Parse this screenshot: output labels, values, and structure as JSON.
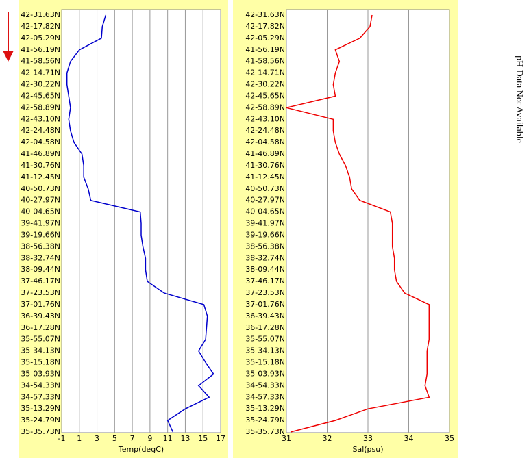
{
  "chart_data": [
    {
      "type": "line",
      "xlabel": "Temp(degC)",
      "categories": [
        "42-31.63N",
        "42-17.82N",
        "42-05.29N",
        "41-56.19N",
        "41-58.56N",
        "42-14.71N",
        "42-30.22N",
        "42-45.65N",
        "42-58.89N",
        "42-43.10N",
        "42-24.48N",
        "42-04.58N",
        "41-46.89N",
        "41-30.76N",
        "41-12.45N",
        "40-50.73N",
        "40-27.97N",
        "40-04.65N",
        "39-41.97N",
        "39-19.66N",
        "38-56.38N",
        "38-32.74N",
        "38-09.44N",
        "37-46.17N",
        "37-23.53N",
        "37-01.76N",
        "36-39.43N",
        "36-17.28N",
        "35-55.07N",
        "35-34.13N",
        "35-15.18N",
        "35-03.93N",
        "34-54.33N",
        "34-57.33N",
        "35-13.29N",
        "35-24.79N",
        "35-35.73N"
      ],
      "series": [
        {
          "name": "Temp",
          "color": "#0000cc",
          "values": [
            4.0,
            3.6,
            3.5,
            1.0,
            0.0,
            -0.4,
            -0.4,
            -0.2,
            0.0,
            -0.2,
            0.0,
            0.4,
            1.3,
            1.5,
            1.5,
            2.0,
            2.3,
            7.9,
            8.0,
            8.0,
            8.2,
            8.5,
            8.5,
            8.7,
            10.6,
            15.1,
            15.5,
            15.4,
            15.3,
            14.5,
            15.3,
            16.2,
            14.5,
            15.7,
            13.0,
            11.0,
            11.6
          ]
        }
      ],
      "xlim": [
        -1,
        17
      ],
      "xticks": [
        -1,
        1,
        3,
        5,
        7,
        9,
        11,
        13,
        15,
        17
      ],
      "grid": true
    },
    {
      "type": "line",
      "xlabel": "Sal(psu)",
      "categories": [
        "42-31.63N",
        "42-17.82N",
        "42-05.29N",
        "41-56.19N",
        "41-58.56N",
        "42-14.71N",
        "42-30.22N",
        "42-45.65N",
        "42-58.89N",
        "42-43.10N",
        "42-24.48N",
        "42-04.58N",
        "41-46.89N",
        "41-30.76N",
        "41-12.45N",
        "40-50.73N",
        "40-27.97N",
        "40-04.65N",
        "39-41.97N",
        "39-19.66N",
        "38-56.38N",
        "38-32.74N",
        "38-09.44N",
        "37-46.17N",
        "37-23.53N",
        "37-01.76N",
        "36-39.43N",
        "36-17.28N",
        "35-55.07N",
        "35-34.13N",
        "35-15.18N",
        "35-03.93N",
        "34-54.33N",
        "34-57.33N",
        "35-13.29N",
        "35-24.79N",
        "35-35.73N"
      ],
      "series": [
        {
          "name": "Sal",
          "color": "#ee0000",
          "values": [
            33.1,
            33.05,
            32.8,
            32.2,
            32.3,
            32.2,
            32.15,
            32.2,
            31.0,
            32.15,
            32.15,
            32.2,
            32.3,
            32.45,
            32.55,
            32.6,
            32.8,
            33.55,
            33.6,
            33.6,
            33.6,
            33.65,
            33.65,
            33.7,
            33.9,
            34.5,
            34.5,
            34.5,
            34.5,
            34.45,
            34.45,
            34.45,
            34.4,
            34.5,
            33.0,
            32.2,
            31.1
          ]
        }
      ],
      "xlim": [
        31,
        35
      ],
      "xticks": [
        31,
        32,
        33,
        34,
        35
      ],
      "grid": true
    }
  ],
  "note": "pH Data Not Available"
}
